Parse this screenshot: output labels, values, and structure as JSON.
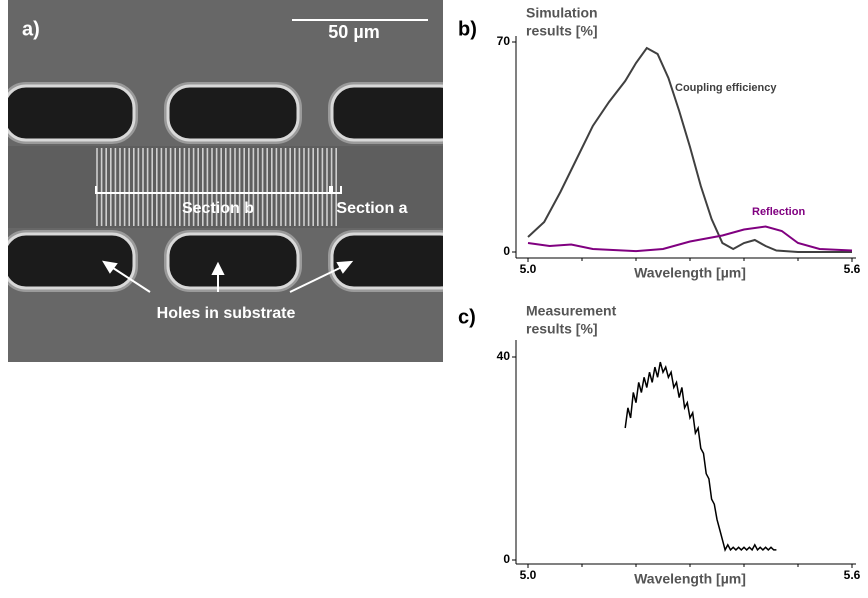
{
  "panel_a": {
    "label": "a)",
    "scale_bar": "50 µm",
    "section_b": "Section b",
    "section_a": "Section a",
    "holes": "Holes in substrate"
  },
  "panel_b_label": "b)",
  "panel_c_label": "c)",
  "chart_data": [
    {
      "type": "line",
      "title": [
        "Simulation",
        "results [%]"
      ],
      "xlabel": "Wavelength [µm]",
      "xlim": [
        5.0,
        5.6
      ],
      "xticks": [
        {
          "value": 5.0,
          "label": "5.0"
        },
        5.6
      ],
      "xminor_ticks": [
        5.1,
        5.2,
        5.3,
        5.4,
        5.5
      ],
      "ylim": [
        0,
        70
      ],
      "yticks": [
        0,
        70
      ],
      "series": [
        {
          "name": "Coupling efficiency",
          "color": "#404040",
          "x": [
            5.0,
            5.03,
            5.06,
            5.09,
            5.12,
            5.15,
            5.18,
            5.2,
            5.22,
            5.24,
            5.26,
            5.28,
            5.3,
            5.32,
            5.34,
            5.36,
            5.38,
            5.4,
            5.42,
            5.44,
            5.46,
            5.5,
            5.6
          ],
          "values": [
            5,
            10,
            20,
            31,
            42,
            50,
            57,
            63,
            68,
            66,
            58,
            47,
            35,
            22,
            11,
            3,
            1,
            3,
            4,
            2,
            0.5,
            0,
            0
          ]
        },
        {
          "name": "Reflection",
          "color": "#800080",
          "x": [
            5.0,
            5.04,
            5.08,
            5.12,
            5.2,
            5.25,
            5.3,
            5.36,
            5.4,
            5.44,
            5.47,
            5.5,
            5.54,
            5.6
          ],
          "values": [
            3,
            2,
            2.5,
            1,
            0.3,
            1,
            3.5,
            5.5,
            7.5,
            8.5,
            7,
            3,
            1,
            0.5
          ]
        }
      ]
    },
    {
      "type": "line",
      "title": [
        "Measurement",
        "results [%]"
      ],
      "xlabel": "Wavelength [µm]",
      "xlim": [
        5.0,
        5.6
      ],
      "xticks": [
        {
          "value": 5.0,
          "label": "5.0"
        },
        5.6
      ],
      "xminor_ticks": [
        5.1,
        5.2,
        5.3,
        5.4,
        5.5
      ],
      "ylim": [
        0,
        40
      ],
      "yticks": [
        0,
        40
      ],
      "color": "#000000",
      "x": [
        5.18,
        5.185,
        5.19,
        5.195,
        5.2,
        5.205,
        5.21,
        5.215,
        5.22,
        5.225,
        5.23,
        5.235,
        5.24,
        5.245,
        5.25,
        5.255,
        5.26,
        5.265,
        5.27,
        5.275,
        5.28,
        5.285,
        5.29,
        5.295,
        5.3,
        5.305,
        5.31,
        5.315,
        5.32,
        5.325,
        5.33,
        5.335,
        5.34,
        5.345,
        5.35,
        5.355,
        5.36,
        5.365,
        5.37,
        5.375,
        5.38,
        5.385,
        5.39,
        5.395,
        5.4,
        5.405,
        5.41,
        5.415,
        5.42,
        5.425,
        5.43,
        5.435,
        5.44,
        5.445,
        5.45,
        5.455,
        5.46
      ],
      "values": [
        26,
        30,
        28,
        33,
        31,
        35,
        33,
        36,
        34,
        37,
        35,
        38,
        36,
        39,
        37,
        38,
        36,
        37,
        34,
        35,
        32,
        34,
        30,
        31,
        28,
        29,
        25,
        26,
        22,
        21,
        17,
        16,
        12,
        11,
        8,
        6,
        4,
        2,
        3,
        2,
        2.5,
        2,
        2.5,
        2,
        2.5,
        2,
        2.5,
        2,
        3,
        2,
        2.5,
        2,
        2.5,
        2,
        2.5,
        2,
        2
      ]
    }
  ]
}
